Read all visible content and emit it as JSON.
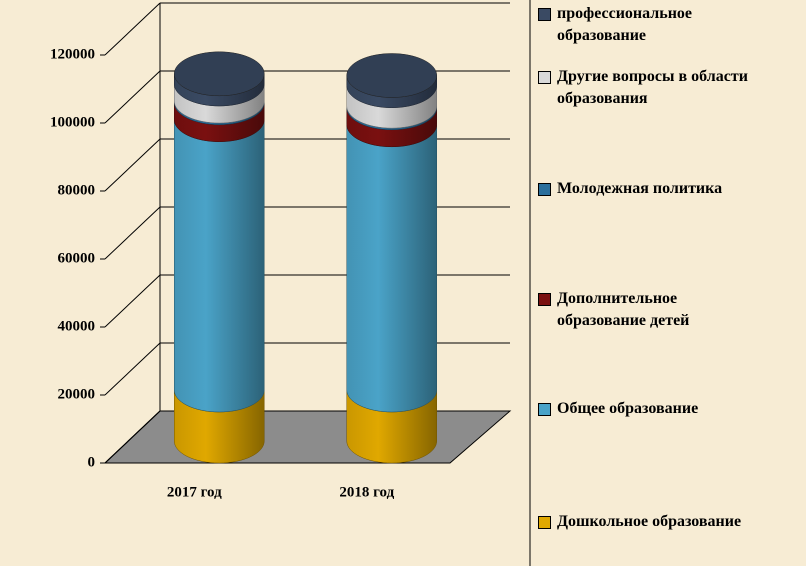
{
  "chart_data": {
    "type": "bar3d_stacked",
    "categories": [
      "2017 год",
      "2018 год"
    ],
    "series": [
      {
        "name": "Дошкольное образование",
        "color": "#e0a800",
        "values": [
          15000,
          15000
        ]
      },
      {
        "name": "Общее образование",
        "color": "#4aa3c8",
        "values": [
          79500,
          78000
        ]
      },
      {
        "name": "Дополнительное образование детей",
        "color": "#7a1010",
        "values": [
          5000,
          5000
        ]
      },
      {
        "name": "Молодежная политика",
        "color": "#2b6f9c",
        "values": [
          500,
          500
        ]
      },
      {
        "name": "Другие вопросы в области образования",
        "color": "#d9d9d9",
        "values": [
          5000,
          6000
        ]
      },
      {
        "name": "профессиональное образование",
        "color": "#3a4a63",
        "values": [
          3000,
          3000
        ]
      }
    ],
    "ylim": [
      0,
      120000
    ],
    "yticks": [
      0,
      20000,
      40000,
      60000,
      80000,
      100000,
      120000
    ],
    "grid": true
  }
}
